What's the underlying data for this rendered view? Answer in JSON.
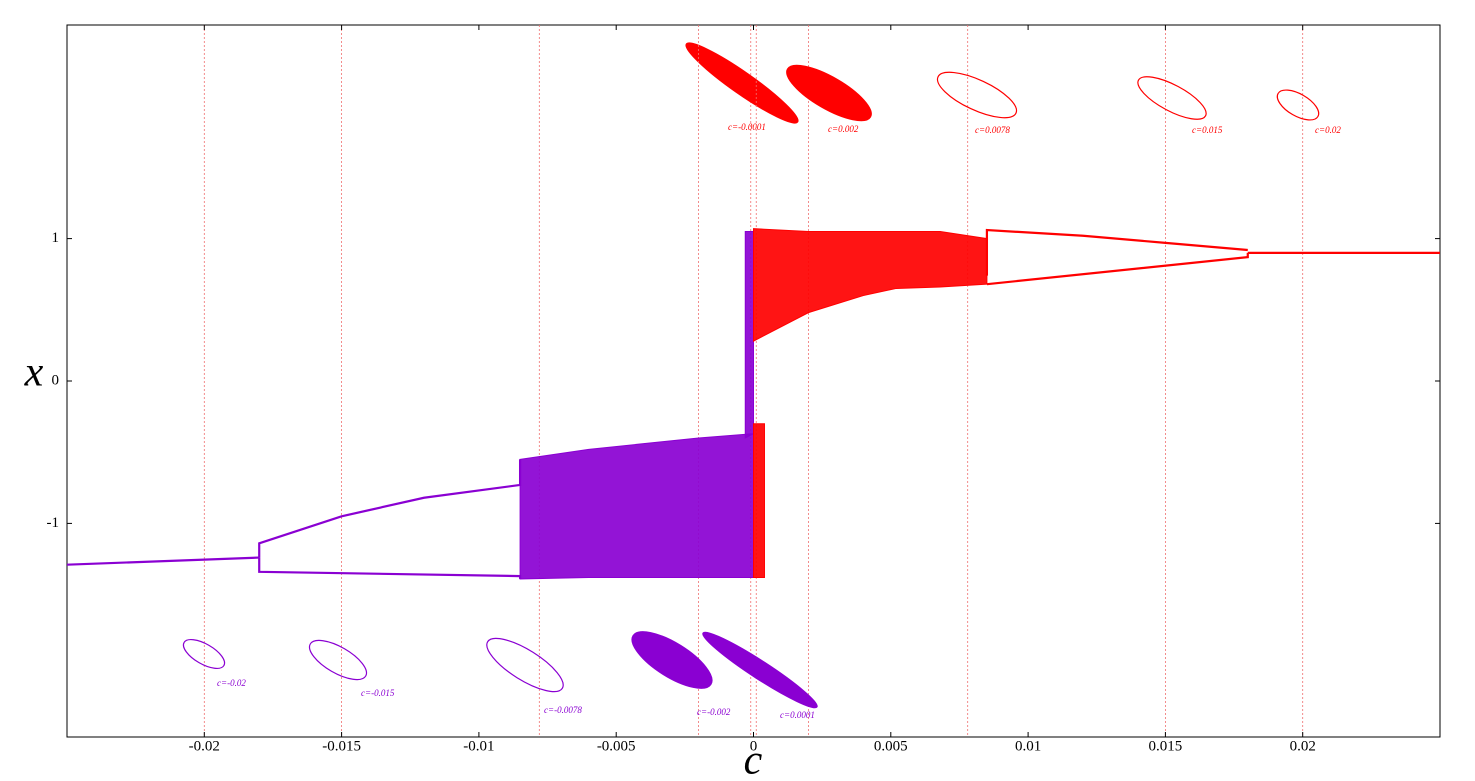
{
  "chart_data": {
    "type": "line",
    "x_label": "c",
    "y_label": "x",
    "xlim": [
      -0.025,
      0.025
    ],
    "ylim": [
      -2.5,
      2.5
    ],
    "xticks": [
      -0.02,
      -0.015,
      -0.01,
      -0.005,
      0,
      0.005,
      0.01,
      0.015,
      0.02
    ],
    "yticks": [
      -1,
      0,
      1
    ],
    "series": [
      {
        "color": "#8a00d2",
        "x": [
          -0.025,
          -0.018
        ],
        "values": [
          -1.29,
          -1.24
        ]
      },
      {
        "color": "#8a00d2",
        "x": [
          -0.018,
          -0.018,
          -0.015,
          -0.012,
          -0.0085,
          -0.0085
        ],
        "values": [
          -1.24,
          -1.14,
          -0.95,
          -0.82,
          -0.73,
          -0.55
        ]
      },
      {
        "color": "#8a00d2",
        "x": [
          -0.018,
          -0.018,
          -0.0085,
          -0.0085
        ],
        "values": [
          -1.24,
          -1.34,
          -1.37,
          -1.39
        ]
      },
      {
        "color": "#ff0000",
        "x": [
          0.018,
          0.025
        ],
        "values": [
          0.9,
          0.9
        ]
      },
      {
        "color": "#ff0000",
        "x": [
          0.0085,
          0.0085,
          0.012,
          0.015,
          0.018
        ],
        "values": [
          0.74,
          1.06,
          1.02,
          0.97,
          0.92
        ]
      },
      {
        "color": "#ff0000",
        "x": [
          0.0085,
          0.018,
          0.018
        ],
        "values": [
          0.68,
          0.87,
          0.9
        ]
      }
    ],
    "bands": [
      {
        "color": "#8a00d2",
        "x": [
          -0.0085,
          -0.006,
          -0.004,
          -0.002,
          0
        ],
        "upper": [
          -0.55,
          -0.48,
          -0.44,
          -0.4,
          -0.37
        ],
        "lower": [
          -1.39,
          -1.38,
          -1.38,
          -1.38,
          -1.38
        ]
      },
      {
        "color": "#8a00d2",
        "x": [
          -0.0003,
          0
        ],
        "upper": [
          1.05,
          1.05
        ],
        "lower": [
          -0.4,
          -0.37
        ]
      },
      {
        "color": "#ff0000",
        "x": [
          0,
          0.002,
          0.004,
          0.0052,
          0.0068,
          0.0085
        ],
        "upper": [
          1.07,
          1.05,
          1.05,
          1.05,
          1.05,
          1.0
        ],
        "lower": [
          0.28,
          0.48,
          0.6,
          0.65,
          0.66,
          0.68
        ]
      },
      {
        "color": "#ff0000",
        "x": [
          0,
          0.0004
        ],
        "upper": [
          -0.3,
          -0.3
        ],
        "lower": [
          -1.38,
          -1.38
        ]
      }
    ],
    "annotations": [
      {
        "c": -0.0001,
        "label": "c=-0.0001",
        "color": "#ff0000"
      },
      {
        "c": 0.002,
        "label": "c=0.002",
        "color": "#ff0000"
      },
      {
        "c": 0.0078,
        "label": "c=0.0078",
        "color": "#ff0000"
      },
      {
        "c": 0.015,
        "label": "c=0.015",
        "color": "#ff0000"
      },
      {
        "c": 0.02,
        "label": "c=0.02",
        "color": "#ff0000"
      },
      {
        "c": -0.02,
        "label": "c=-0.02",
        "color": "#8a00d2"
      },
      {
        "c": -0.015,
        "label": "c=-0.015",
        "color": "#8a00d2"
      },
      {
        "c": -0.0078,
        "label": "c=-0.0078",
        "color": "#8a00d2"
      },
      {
        "c": -0.002,
        "label": "c=-0.002",
        "color": "#8a00d2"
      },
      {
        "c": 0.0001,
        "label": "c=0.0001",
        "color": "#8a00d2"
      }
    ]
  }
}
